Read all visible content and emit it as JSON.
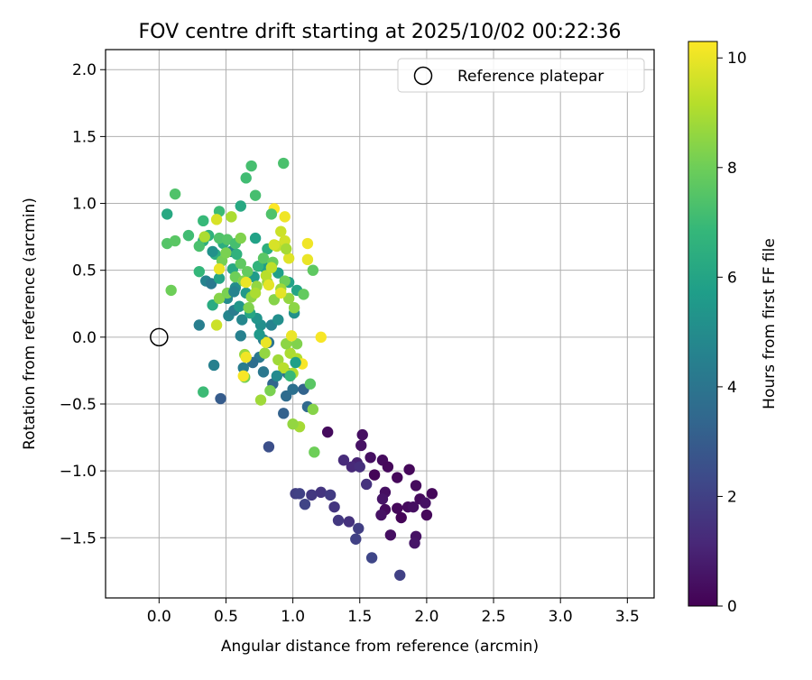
{
  "chart_data": {
    "type": "scatter",
    "title": "FOV centre drift starting at 2025/10/02 00:22:36",
    "xlabel": "Angular distance from reference (arcmin)",
    "ylabel": "Rotation from reference (arcmin)",
    "xlim": [
      -0.4,
      3.7
    ],
    "ylim": [
      -1.95,
      2.15
    ],
    "xticks": [
      0.0,
      0.5,
      1.0,
      1.5,
      2.0,
      2.5,
      3.0,
      3.5
    ],
    "xtick_labels": [
      "0.0",
      "0.5",
      "1.0",
      "1.5",
      "2.0",
      "2.5",
      "3.0",
      "3.5"
    ],
    "yticks": [
      -1.5,
      -1.0,
      -0.5,
      0.0,
      0.5,
      1.0,
      1.5,
      2.0
    ],
    "ytick_labels": [
      "−1.5",
      "−1.0",
      "−0.5",
      "0.0",
      "0.5",
      "1.0",
      "1.5",
      "2.0"
    ],
    "grid": true,
    "legend": {
      "position": "top-right",
      "entries": [
        {
          "label": "Reference platepar",
          "marker": "open-circle"
        }
      ]
    },
    "reference_point": {
      "x": 0.0,
      "y": 0.0
    },
    "colorbar": {
      "label": "Hours from first FF file",
      "colormap": "viridis",
      "min": 0,
      "max": 10.3,
      "ticks": [
        0,
        2,
        4,
        6,
        8,
        10
      ],
      "tick_labels": [
        "0",
        "2",
        "4",
        "6",
        "8",
        "10"
      ],
      "colors": [
        "#440154",
        "#482878",
        "#3e4989",
        "#31688e",
        "#26828e",
        "#1f9e89",
        "#35b779",
        "#6ece58",
        "#b5de2b",
        "#fde725"
      ]
    },
    "points": [
      [
        1.26,
        -0.71,
        0.3
      ],
      [
        1.52,
        -0.73,
        0.4
      ],
      [
        1.51,
        -0.81,
        0.5
      ],
      [
        1.58,
        -0.9,
        0.4
      ],
      [
        1.67,
        -0.92,
        0.3
      ],
      [
        1.71,
        -0.97,
        0.2
      ],
      [
        1.87,
        -0.99,
        0.2
      ],
      [
        1.61,
        -1.03,
        0.1
      ],
      [
        1.78,
        -1.05,
        0.2
      ],
      [
        1.92,
        -1.11,
        0.3
      ],
      [
        1.69,
        -1.16,
        0.4
      ],
      [
        2.04,
        -1.17,
        0.2
      ],
      [
        1.95,
        -1.21,
        0.3
      ],
      [
        1.67,
        -1.21,
        0.6
      ],
      [
        1.99,
        -1.24,
        0.5
      ],
      [
        1.86,
        -1.27,
        0.3
      ],
      [
        1.78,
        -1.28,
        0.2
      ],
      [
        1.9,
        -1.27,
        0.4
      ],
      [
        1.69,
        -1.29,
        0.3
      ],
      [
        1.81,
        -1.35,
        0.1
      ],
      [
        2.0,
        -1.33,
        0.2
      ],
      [
        1.66,
        -1.33,
        0.5
      ],
      [
        1.92,
        -1.49,
        0.5
      ],
      [
        1.73,
        -1.48,
        0.4
      ],
      [
        1.91,
        -1.54,
        0.6
      ],
      [
        1.48,
        -0.94,
        1.0
      ],
      [
        1.44,
        -0.97,
        1.2
      ],
      [
        1.38,
        -0.92,
        1.3
      ],
      [
        1.5,
        -0.97,
        1.4
      ],
      [
        1.55,
        -1.1,
        1.5
      ],
      [
        1.21,
        -1.16,
        1.6
      ],
      [
        1.14,
        -1.18,
        1.7
      ],
      [
        1.02,
        -1.17,
        1.9
      ],
      [
        1.05,
        -1.17,
        2.0
      ],
      [
        1.09,
        -1.25,
        2.1
      ],
      [
        1.28,
        -1.18,
        1.8
      ],
      [
        1.31,
        -1.27,
        1.6
      ],
      [
        1.34,
        -1.37,
        1.7
      ],
      [
        1.42,
        -1.38,
        1.5
      ],
      [
        1.49,
        -1.43,
        1.9
      ],
      [
        1.47,
        -1.51,
        2.0
      ],
      [
        1.59,
        -1.65,
        2.2
      ],
      [
        1.8,
        -1.78,
        2.0
      ],
      [
        0.82,
        -0.82,
        2.5
      ],
      [
        0.46,
        -0.46,
        3.0
      ],
      [
        0.93,
        -0.57,
        3.2
      ],
      [
        0.85,
        -0.35,
        3.4
      ],
      [
        0.95,
        -0.44,
        3.6
      ],
      [
        1.0,
        -0.39,
        3.8
      ],
      [
        1.08,
        -0.39,
        3.3
      ],
      [
        1.11,
        -0.52,
        3.5
      ],
      [
        0.96,
        -0.27,
        3.9
      ],
      [
        0.78,
        -0.26,
        4.1
      ],
      [
        0.75,
        -0.15,
        4.2
      ],
      [
        0.63,
        -0.23,
        4.3
      ],
      [
        0.7,
        -0.19,
        3.7
      ],
      [
        0.78,
        -0.02,
        4.4
      ],
      [
        0.82,
        -0.04,
        4.0
      ],
      [
        0.61,
        0.01,
        4.5
      ],
      [
        0.84,
        0.09,
        4.6
      ],
      [
        0.52,
        0.16,
        4.7
      ],
      [
        0.56,
        0.2,
        4.3
      ],
      [
        0.62,
        0.13,
        4.8
      ],
      [
        0.51,
        0.29,
        4.9
      ],
      [
        0.57,
        0.37,
        5.0
      ],
      [
        0.3,
        0.09,
        4.4
      ],
      [
        0.35,
        0.42,
        4.6
      ],
      [
        0.39,
        0.4,
        4.2
      ],
      [
        0.54,
        0.64,
        4.8
      ],
      [
        0.76,
        0.09,
        5.1
      ],
      [
        1.01,
        0.18,
        5.2
      ],
      [
        0.73,
        0.14,
        5.3
      ],
      [
        0.6,
        0.23,
        5.4
      ],
      [
        0.65,
        0.33,
        5.5
      ],
      [
        0.71,
        0.45,
        5.6
      ],
      [
        0.79,
        0.52,
        5.7
      ],
      [
        0.89,
        0.48,
        5.8
      ],
      [
        0.97,
        0.41,
        5.9
      ],
      [
        1.03,
        0.35,
        6.0
      ],
      [
        0.68,
        0.18,
        6.1
      ],
      [
        0.55,
        0.51,
        6.2
      ],
      [
        0.45,
        0.44,
        6.0
      ],
      [
        0.4,
        0.24,
        6.3
      ],
      [
        0.42,
        0.62,
        6.4
      ],
      [
        0.61,
        0.98,
        6.2
      ],
      [
        0.33,
        0.72,
        6.5
      ],
      [
        0.37,
        0.76,
        6.6
      ],
      [
        0.48,
        0.7,
        6.4
      ],
      [
        0.81,
        0.66,
        6.5
      ],
      [
        0.74,
        0.53,
        6.7
      ],
      [
        0.3,
        0.49,
        6.8
      ],
      [
        0.33,
        0.87,
        6.9
      ],
      [
        0.45,
        0.94,
        7.0
      ],
      [
        0.65,
        1.19,
        7.1
      ],
      [
        0.69,
        1.28,
        7.2
      ],
      [
        0.93,
        1.3,
        7.3
      ],
      [
        0.12,
        1.07,
        7.4
      ],
      [
        0.72,
        1.06,
        7.2
      ],
      [
        0.22,
        0.76,
        7.1
      ],
      [
        0.3,
        0.68,
        7.3
      ],
      [
        0.06,
        0.7,
        7.5
      ],
      [
        0.12,
        0.72,
        7.6
      ],
      [
        0.45,
        0.74,
        7.4
      ],
      [
        0.51,
        0.73,
        7.5
      ],
      [
        0.57,
        0.7,
        7.2
      ],
      [
        0.61,
        0.55,
        7.7
      ],
      [
        0.66,
        0.49,
        7.8
      ],
      [
        0.78,
        0.59,
        7.6
      ],
      [
        0.85,
        0.56,
        7.9
      ],
      [
        0.94,
        0.42,
        8.0
      ],
      [
        1.08,
        0.32,
        7.8
      ],
      [
        1.15,
        0.5,
        7.7
      ],
      [
        0.33,
        -0.41,
        7.0
      ],
      [
        0.41,
        -0.21,
        4.5
      ],
      [
        0.57,
        0.45,
        8.0
      ],
      [
        0.47,
        0.57,
        8.1
      ],
      [
        0.5,
        0.63,
        8.2
      ],
      [
        0.61,
        0.74,
        8.3
      ],
      [
        0.45,
        0.29,
        8.4
      ],
      [
        0.51,
        0.33,
        8.2
      ],
      [
        0.63,
        0.42,
        8.3
      ],
      [
        0.69,
        0.3,
        8.5
      ],
      [
        0.73,
        0.38,
        8.6
      ],
      [
        0.81,
        0.41,
        8.7
      ],
      [
        0.86,
        0.28,
        8.4
      ],
      [
        0.91,
        0.36,
        8.8
      ],
      [
        0.97,
        0.29,
        8.6
      ],
      [
        1.01,
        0.22,
        8.5
      ],
      [
        1.13,
        -0.35,
        7.6
      ],
      [
        1.15,
        -0.54,
        8.4
      ],
      [
        1.16,
        -0.86,
        8.0
      ],
      [
        1.05,
        -0.67,
        8.9
      ],
      [
        0.83,
        -0.4,
        8.2
      ],
      [
        0.76,
        -0.47,
        8.8
      ],
      [
        0.64,
        -0.3,
        8.1
      ],
      [
        0.64,
        -0.13,
        8.7
      ],
      [
        0.79,
        -0.12,
        8.6
      ],
      [
        0.89,
        -0.17,
        8.8
      ],
      [
        0.98,
        -0.12,
        9.0
      ],
      [
        1.03,
        -0.16,
        9.1
      ],
      [
        0.93,
        -0.23,
        9.2
      ],
      [
        1.0,
        -0.27,
        9.1
      ],
      [
        0.95,
        -0.05,
        8.5
      ],
      [
        1.03,
        -0.05,
        8.3
      ],
      [
        0.72,
        0.33,
        9.0
      ],
      [
        0.8,
        0.46,
        9.2
      ],
      [
        0.84,
        0.52,
        9.3
      ],
      [
        0.88,
        0.68,
        9.4
      ],
      [
        0.91,
        0.79,
        9.5
      ],
      [
        0.94,
        0.72,
        9.6
      ],
      [
        0.86,
        0.69,
        9.7
      ],
      [
        0.97,
        0.59,
        9.8
      ],
      [
        0.91,
        0.33,
        9.9
      ],
      [
        0.99,
        0.01,
        10.0
      ],
      [
        1.11,
        0.7,
        10.1
      ],
      [
        1.11,
        0.58,
        10.0
      ],
      [
        1.21,
        0.0,
        10.2
      ],
      [
        0.94,
        0.9,
        10.1
      ],
      [
        0.86,
        0.96,
        10.3
      ],
      [
        0.65,
        0.41,
        10.0
      ],
      [
        0.65,
        -0.15,
        10.1
      ],
      [
        0.63,
        -0.29,
        10.2
      ],
      [
        0.8,
        -0.04,
        10.0
      ],
      [
        0.82,
        0.39,
        9.9
      ],
      [
        0.45,
        0.51,
        10.0
      ],
      [
        0.67,
        0.22,
        8.3
      ],
      [
        0.43,
        0.88,
        9.7
      ],
      [
        0.34,
        0.75,
        9.0
      ],
      [
        0.43,
        0.09,
        9.5
      ],
      [
        0.09,
        0.35,
        8.0
      ],
      [
        0.06,
        0.92,
        6.2
      ],
      [
        0.84,
        0.92,
        7.4
      ],
      [
        1.07,
        -0.2,
        10.2
      ],
      [
        0.75,
        0.02,
        5.5
      ],
      [
        0.54,
        0.9,
        9.0
      ],
      [
        0.58,
        0.62,
        6.6
      ],
      [
        0.72,
        0.74,
        5.9
      ],
      [
        0.4,
        0.64,
        5.2
      ],
      [
        0.95,
        0.66,
        8.9
      ],
      [
        0.88,
        -0.29,
        4.9
      ],
      [
        1.0,
        -0.65,
        8.6
      ],
      [
        0.98,
        -0.29,
        6.9
      ],
      [
        1.02,
        -0.19,
        5.8
      ],
      [
        0.89,
        0.13,
        5.1
      ],
      [
        0.56,
        0.34,
        4.6
      ]
    ]
  }
}
